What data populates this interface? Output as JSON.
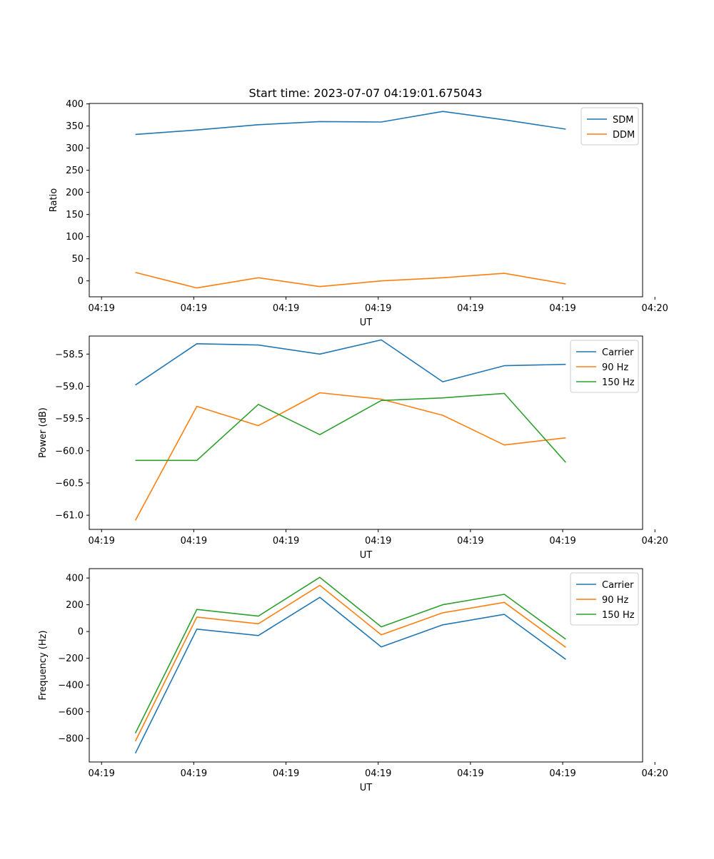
{
  "figure_title": "Start time: 2023-07-07 04:19:01.675043",
  "colors": {
    "blue": "#1f77b4",
    "orange": "#ff7f0e",
    "green": "#2ca02c"
  },
  "chart_data": [
    {
      "type": "line",
      "ylabel": "Ratio",
      "xlabel": "UT",
      "x": [
        1,
        2,
        3,
        4,
        5,
        6,
        7,
        8
      ],
      "xlim": [
        0.25,
        9.25
      ],
      "xticks": [
        0.45,
        1.95,
        3.45,
        4.95,
        6.45,
        7.95,
        9.45
      ],
      "xtick_labels": [
        "04:19",
        "04:19",
        "04:19",
        "04:19",
        "04:19",
        "04:19",
        "04:20"
      ],
      "ylim": [
        -36,
        401
      ],
      "yticks": [
        0,
        50,
        100,
        150,
        200,
        250,
        300,
        350,
        400
      ],
      "ytick_labels": [
        "0",
        "50",
        "100",
        "150",
        "200",
        "250",
        "300",
        "350",
        "400"
      ],
      "legend": "top-right",
      "series": [
        {
          "name": "SDM",
          "color": "#1f77b4",
          "values": [
            331,
            341,
            353,
            360,
            359,
            383,
            364,
            343
          ]
        },
        {
          "name": "DDM",
          "color": "#ff7f0e",
          "values": [
            19,
            -16,
            7,
            -13,
            0,
            7,
            17,
            -7
          ]
        }
      ]
    },
    {
      "type": "line",
      "ylabel": "Power (dB)",
      "xlabel": "UT",
      "x": [
        1,
        2,
        3,
        4,
        5,
        6,
        7,
        8
      ],
      "xlim": [
        0.25,
        9.25
      ],
      "xticks": [
        0.45,
        1.95,
        3.45,
        4.95,
        6.45,
        7.95,
        9.45
      ],
      "xtick_labels": [
        "04:19",
        "04:19",
        "04:19",
        "04:19",
        "04:19",
        "04:19",
        "04:20"
      ],
      "ylim": [
        -61.22,
        -58.22
      ],
      "yticks": [
        -58.5,
        -59.0,
        -59.5,
        -60.0,
        -60.5,
        -61.0
      ],
      "ytick_labels": [
        "−58.5",
        "−59.0",
        "−59.5",
        "−60.0",
        "−60.5",
        "−61.0"
      ],
      "legend": "top-right",
      "series": [
        {
          "name": "Carrier",
          "color": "#1f77b4",
          "values": [
            -58.98,
            -58.34,
            -58.36,
            -58.5,
            -58.28,
            -58.93,
            -58.68,
            -58.66
          ]
        },
        {
          "name": "90 Hz",
          "color": "#ff7f0e",
          "values": [
            -61.08,
            -59.31,
            -59.61,
            -59.1,
            -59.2,
            -59.45,
            -59.91,
            -59.8
          ]
        },
        {
          "name": "150 Hz",
          "color": "#2ca02c",
          "values": [
            -60.15,
            -60.15,
            -59.28,
            -59.75,
            -59.22,
            -59.18,
            -59.11,
            -60.18
          ]
        }
      ]
    },
    {
      "type": "line",
      "ylabel": "Frequency (Hz)",
      "xlabel": "UT",
      "x": [
        1,
        2,
        3,
        4,
        5,
        6,
        7,
        8
      ],
      "xlim": [
        0.25,
        9.25
      ],
      "xticks": [
        0.45,
        1.95,
        3.45,
        4.95,
        6.45,
        7.95,
        9.45
      ],
      "xtick_labels": [
        "04:19",
        "04:19",
        "04:19",
        "04:19",
        "04:19",
        "04:19",
        "04:20"
      ],
      "ylim": [
        -975,
        470
      ],
      "yticks": [
        400,
        200,
        0,
        -200,
        -400,
        -600,
        -800
      ],
      "ytick_labels": [
        "400",
        "200",
        "0",
        "−200",
        "−400",
        "−600",
        "−800"
      ],
      "legend": "top-right",
      "series": [
        {
          "name": "Carrier",
          "color": "#1f77b4",
          "values": [
            -910,
            18,
            -30,
            255,
            -115,
            50,
            128,
            -208
          ]
        },
        {
          "name": "90 Hz",
          "color": "#ff7f0e",
          "values": [
            -820,
            108,
            58,
            345,
            -25,
            140,
            218,
            -118
          ]
        },
        {
          "name": "150 Hz",
          "color": "#2ca02c",
          "values": [
            -760,
            165,
            115,
            405,
            35,
            200,
            278,
            -58
          ]
        }
      ]
    }
  ]
}
